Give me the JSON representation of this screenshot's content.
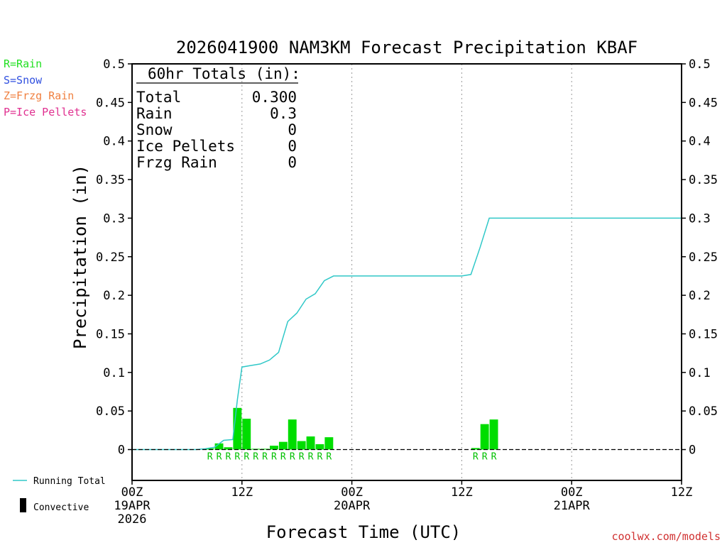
{
  "chart_data": {
    "type": "bar",
    "title": "2026041900 NAM3KM Forecast Precipitation KBAF",
    "ylabel": "Precipitation (in)",
    "xlabel": "Forecast Time (UTC)",
    "ylim": [
      -0.04,
      0.5
    ],
    "yticks": [
      0,
      0.05,
      0.1,
      0.15,
      0.2,
      0.25,
      0.3,
      0.35,
      0.4,
      0.45,
      0.5
    ],
    "ytick_labels": [
      "0",
      "0.05",
      "0.1",
      "0.15",
      "0.2",
      "0.25",
      "0.3",
      "0.35",
      "0.4",
      "0.45",
      "0.5"
    ],
    "xlim_hours": [
      0,
      60
    ],
    "xticks": [
      {
        "hour": 0,
        "lines": [
          "00Z",
          "19APR",
          "2026"
        ]
      },
      {
        "hour": 12,
        "lines": [
          "12Z"
        ]
      },
      {
        "hour": 24,
        "lines": [
          "00Z",
          "20APR"
        ]
      },
      {
        "hour": 36,
        "lines": [
          "12Z"
        ]
      },
      {
        "hour": 48,
        "lines": [
          "00Z",
          "21APR"
        ]
      },
      {
        "hour": 60,
        "lines": [
          "12Z"
        ]
      }
    ],
    "bar_series": {
      "name": "Convective",
      "hours": [
        9,
        10,
        11,
        12,
        13,
        14,
        15,
        16,
        17,
        18,
        19,
        20,
        21,
        22,
        38,
        39,
        40
      ],
      "values": [
        0.0015,
        0.008,
        0.003,
        0.054,
        0.04,
        0.001,
        0.001,
        0.005,
        0.01,
        0.039,
        0.011,
        0.017,
        0.007,
        0.016,
        0.002,
        0.033,
        0.039
      ],
      "types": [
        "R",
        "R",
        "R",
        "R",
        "R",
        "R",
        "R",
        "R",
        "R",
        "R",
        "R",
        "R",
        "R",
        "R",
        "R",
        "R",
        "R"
      ]
    },
    "running_total": {
      "name": "Running Total",
      "hours": [
        0,
        6,
        7,
        8,
        9,
        10,
        11,
        11.5,
        12,
        13,
        14,
        15,
        16,
        17,
        18,
        19,
        20,
        21,
        22,
        23,
        24,
        36,
        37,
        38,
        39,
        60
      ],
      "values": [
        0,
        0,
        0,
        0.001,
        0.003,
        0.012,
        0.013,
        0.065,
        0.107,
        0.109,
        0.111,
        0.116,
        0.126,
        0.166,
        0.177,
        0.195,
        0.202,
        0.219,
        0.225,
        0.225,
        0.225,
        0.225,
        0.227,
        0.262,
        0.3,
        0.3
      ]
    },
    "precip_type_legend": [
      {
        "label": "R=Rain",
        "color": "#20e020"
      },
      {
        "label": "S=Snow",
        "color": "#3050e0"
      },
      {
        "label": "Z=Frzg Rain",
        "color": "#f08040"
      },
      {
        "label": "P=Ice Pellets",
        "color": "#e03090"
      }
    ],
    "series_legend": [
      {
        "label": "Running Total",
        "color": "#30c8c8",
        "kind": "line"
      },
      {
        "label": "Convective",
        "color": "#000000",
        "kind": "bar"
      }
    ],
    "totals_box": {
      "header": "60hr Totals (in):",
      "rows": [
        {
          "label": "Total",
          "value": "0.300"
        },
        {
          "label": "Rain",
          "value": "0.3"
        },
        {
          "label": "Snow",
          "value": "0"
        },
        {
          "label": "Ice Pellets",
          "value": "0"
        },
        {
          "label": "Frzg Rain",
          "value": "0"
        }
      ]
    },
    "colors": {
      "bar": "#00dd00",
      "running_total": "#30c8c8",
      "rain_marker": "#00c000",
      "credit": "#d03030"
    },
    "credit": "coolwx.com/models"
  }
}
